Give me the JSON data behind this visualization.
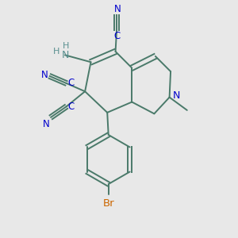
{
  "bg_color": "#e8e8e8",
  "bond_color": "#4a7a6a",
  "n_color": "#0000cc",
  "nh2_color": "#5a9090",
  "br_color": "#cc6600",
  "figsize": [
    3.0,
    3.0
  ],
  "dpi": 100,
  "xlim": [
    0,
    10
  ],
  "ylim": [
    0,
    10
  ]
}
